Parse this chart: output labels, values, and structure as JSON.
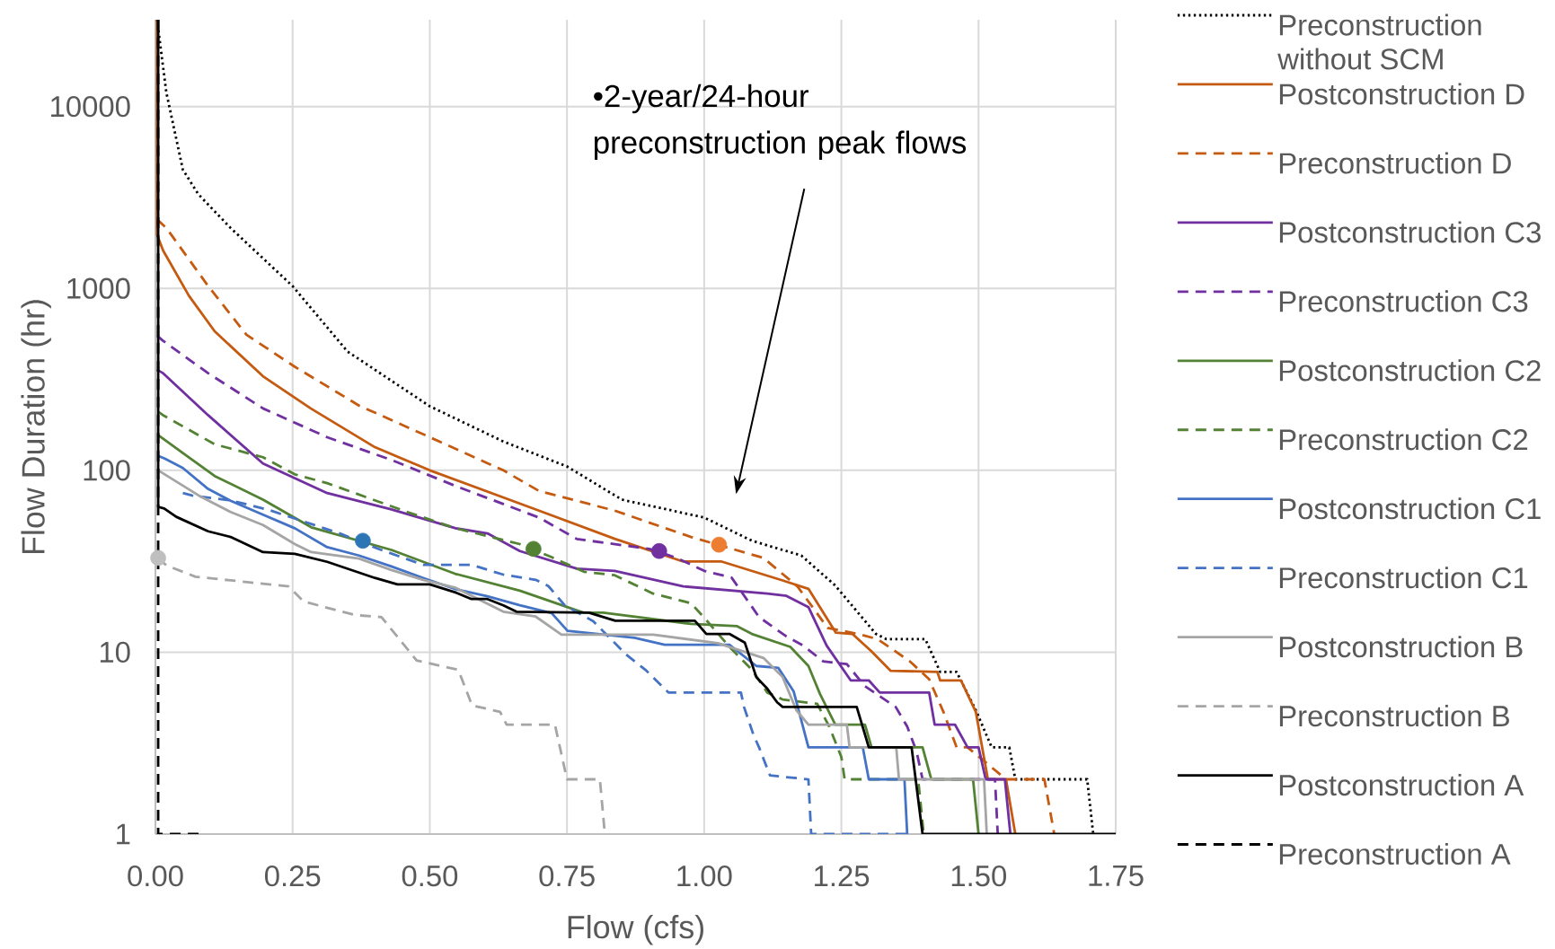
{
  "chart_data": {
    "type": "line",
    "xlabel": "Flow (cfs)",
    "ylabel": "Flow Duration (hr)",
    "xlim": [
      0,
      1.75
    ],
    "ylim": [
      1,
      30000
    ],
    "log": "y",
    "grid": true,
    "legend": "right",
    "xticks": [
      {
        "value": 0,
        "label": "0.00"
      },
      {
        "value": 0.25,
        "label": "0.25"
      },
      {
        "value": 0.5,
        "label": "0.50"
      },
      {
        "value": 0.75,
        "label": "0.75"
      },
      {
        "value": 1,
        "label": "1.00"
      },
      {
        "value": 1.25,
        "label": "1.25"
      },
      {
        "value": 1.5,
        "label": "1.50"
      },
      {
        "value": 1.75,
        "label": "1.75"
      }
    ],
    "yticks": [
      1,
      10,
      100,
      1000,
      10000
    ],
    "annotations": [
      "•2-year/24-hour preconstruction peak flows"
    ],
    "series": [
      {
        "name": "Preconstruction without SCM",
        "color": "#000000",
        "line_style": "dotted",
        "x": [
          0.003,
          0.02,
          0.05,
          0.078,
          0.137,
          0.25,
          0.35,
          0.5,
          0.634,
          0.75,
          0.85,
          1.0,
          1.087,
          1.177,
          1.238,
          1.313,
          1.332,
          1.403,
          1.43,
          1.46,
          1.495,
          1.524,
          1.556,
          1.567,
          1.698,
          1.709
        ],
        "values": [
          30000,
          11900,
          4500,
          3300,
          2150,
          1030,
          450,
          225,
          144,
          105,
          69,
          55,
          41,
          34,
          23.4,
          12.6,
          11.8,
          11.8,
          7.8,
          7.8,
          4.8,
          3,
          3,
          2,
          2,
          1
        ]
      },
      {
        "name": "Postconstruction D",
        "color": "#c55a11",
        "line_style": "solid",
        "x": [
          0.003,
          0.003,
          0.014,
          0.061,
          0.108,
          0.196,
          0.283,
          0.4,
          0.5,
          0.699,
          0.837,
          0.962,
          1.032,
          1.143,
          1.19,
          1.24,
          1.27,
          1.305,
          1.34,
          1.425,
          1.43,
          1.468,
          1.495,
          1.517,
          1.55,
          1.567
        ],
        "values": [
          30000,
          1970,
          1616,
          912,
          581,
          329,
          219,
          134,
          100,
          60,
          42,
          31.5,
          31.5,
          24.8,
          22.3,
          12.8,
          12.6,
          10.1,
          7.9,
          7.8,
          7.0,
          7.0,
          4.7,
          2,
          2,
          1
        ]
      },
      {
        "name": "Preconstruction D",
        "color": "#c55a11",
        "line_style": "dashed",
        "x": [
          0.003,
          0.02,
          0.096,
          0.166,
          0.254,
          0.371,
          0.5,
          0.634,
          0.699,
          0.837,
          0.976,
          1.108,
          1.17,
          1.225,
          1.28,
          1.316,
          1.375,
          1.41,
          1.436,
          1.46,
          1.48,
          1.55,
          1.62,
          1.638
        ],
        "values": [
          2400,
          2148,
          1032,
          556,
          371,
          227,
          152,
          100,
          77,
          60,
          43,
          33,
          23,
          13.6,
          12.6,
          11.8,
          8.9,
          7.1,
          4.7,
          3,
          3,
          2,
          2,
          1
        ]
      },
      {
        "name": "Postconstruction C3",
        "color": "#7030a0",
        "line_style": "solid",
        "x": [
          0.003,
          0.014,
          0.096,
          0.196,
          0.313,
          0.43,
          0.547,
          0.605,
          0.664,
          0.768,
          0.837,
          0.962,
          1.115,
          1.15,
          1.19,
          1.223,
          1.267,
          1.3,
          1.32,
          1.41,
          1.42,
          1.457,
          1.48,
          1.5,
          1.513,
          1.548,
          1.558
        ],
        "values": [
          357,
          342,
          201,
          109,
          75,
          61,
          48,
          45,
          36,
          28.8,
          28,
          23,
          21,
          20.4,
          17.7,
          10.9,
          7.0,
          7.0,
          6.0,
          6.0,
          4,
          4,
          3,
          3,
          2,
          2,
          1
        ]
      },
      {
        "name": "Preconstruction C3",
        "color": "#7030a0",
        "line_style": "dashed",
        "x": [
          0.003,
          0.014,
          0.096,
          0.196,
          0.313,
          0.43,
          0.547,
          0.699,
          0.768,
          0.9,
          0.95,
          1.0,
          1.05,
          1.1,
          1.15,
          1.18,
          1.217,
          1.26,
          1.293,
          1.349,
          1.37,
          1.387,
          1.398,
          1.53,
          1.535
        ],
        "values": [
          550,
          515,
          342,
          219,
          152,
          114,
          82,
          55,
          41.9,
          37,
          33,
          28,
          25.7,
          15.6,
          12.2,
          10.9,
          8.9,
          8.6,
          6.5,
          5,
          3.9,
          2.85,
          2,
          2,
          1
        ]
      },
      {
        "name": "Postconstruction C2",
        "color": "#548235",
        "line_style": "solid",
        "x": [
          0.005,
          0.108,
          0.196,
          0.284,
          0.43,
          0.488,
          0.546,
          0.664,
          0.78,
          0.816,
          0.976,
          1.06,
          1.087,
          1.157,
          1.19,
          1.211,
          1.239,
          1.293,
          1.305,
          1.398,
          1.414,
          1.49,
          1.5
        ],
        "values": [
          156,
          93,
          69,
          48.6,
          36.5,
          31.4,
          27,
          21.8,
          16.5,
          16.5,
          14.3,
          13.9,
          12.6,
          10.7,
          8.4,
          5.9,
          4,
          4,
          3,
          3,
          2,
          2,
          1
        ]
      },
      {
        "name": "Preconstruction C2",
        "color": "#548235",
        "line_style": "dashed",
        "x": [
          0.005,
          0.014,
          0.108,
          0.196,
          0.254,
          0.313,
          0.459,
          0.547,
          0.605,
          0.664,
          0.722,
          0.781,
          0.837,
          0.907,
          0.976,
          1.004,
          1.046,
          1.087,
          1.115,
          1.143,
          1.206,
          1.228,
          1.25,
          1.256,
          1.39,
          1.4
        ],
        "values": [
          210,
          201,
          139,
          118,
          95,
          85,
          59,
          48,
          43.5,
          39.3,
          33.3,
          27.7,
          26.5,
          21,
          18.6,
          15,
          10.7,
          8,
          6,
          5.5,
          5.2,
          3.9,
          2.65,
          2,
          2,
          1
        ]
      },
      {
        "name": "Postconstruction C1",
        "color": "#4472c4",
        "line_style": "solid",
        "x": [
          0.005,
          0.017,
          0.05,
          0.096,
          0.137,
          0.196,
          0.254,
          0.313,
          0.371,
          0.43,
          0.488,
          0.547,
          0.605,
          0.664,
          0.722,
          0.751,
          0.873,
          0.928,
          1.046,
          1.095,
          1.135,
          1.163,
          1.19,
          1.289,
          1.3,
          1.365,
          1.37
        ],
        "values": [
          120,
          116,
          103,
          79,
          68,
          57,
          48,
          37.8,
          34,
          29.6,
          25.6,
          22.2,
          20.3,
          18.1,
          16.4,
          13.1,
          12,
          11,
          11,
          8.4,
          8.2,
          6.1,
          3,
          3,
          2,
          2,
          1
        ]
      },
      {
        "name": "Preconstruction C1",
        "color": "#4472c4",
        "line_style": "dashed",
        "x": [
          0.05,
          0.067,
          0.137,
          0.207,
          0.289,
          0.336,
          0.406,
          0.488,
          0.576,
          0.634,
          0.693,
          0.716,
          0.746,
          0.798,
          0.858,
          0.893,
          0.935,
          1.067,
          1.073,
          1.09,
          1.1,
          1.12,
          1.19,
          1.195,
          1.38
        ],
        "values": [
          75,
          72.7,
          68.4,
          60.5,
          50.1,
          45,
          37,
          30.2,
          30.2,
          26.7,
          25,
          23.1,
          18.1,
          14.8,
          9.7,
          8,
          6,
          6,
          4.96,
          3.5,
          3,
          2.1,
          2,
          1,
          1
        ]
      },
      {
        "name": "Postconstruction B",
        "color": "#a5a5a5",
        "line_style": "solid",
        "x": [
          0.005,
          0.017,
          0.079,
          0.137,
          0.196,
          0.254,
          0.284,
          0.371,
          0.43,
          0.488,
          0.547,
          0.634,
          0.693,
          0.74,
          0.907,
          1.025,
          1.108,
          1.143,
          1.168,
          1.19,
          1.26,
          1.265,
          1.35,
          1.355,
          1.51,
          1.515
        ],
        "values": [
          100,
          95,
          72.7,
          59,
          50,
          39.3,
          35.5,
          32.7,
          28.3,
          25,
          22.6,
          16.7,
          15.7,
          12.5,
          12.5,
          11.2,
          9.3,
          7.3,
          4.8,
          4,
          4,
          3,
          3,
          2,
          2,
          1
        ]
      },
      {
        "name": "Preconstruction B",
        "color": "#a5a5a5",
        "line_style": "dashed",
        "x": [
          0.005,
          0.02,
          0.073,
          0.243,
          0.27,
          0.364,
          0.412,
          0.476,
          0.552,
          0.577,
          0.628,
          0.64,
          0.728,
          0.75,
          0.81,
          0.819
        ],
        "values": [
          33,
          30,
          26,
          23,
          19,
          16,
          15.6,
          9,
          8,
          5.1,
          4.7,
          4,
          4,
          2,
          2,
          1
        ]
      },
      {
        "name": "Postconstruction A",
        "color": "#000000",
        "line_style": "solid",
        "x": [
          0.005,
          0.005,
          0.016,
          0.038,
          0.096,
          0.137,
          0.196,
          0.254,
          0.313,
          0.4,
          0.441,
          0.5,
          0.547,
          0.576,
          0.605,
          0.634,
          0.658,
          0.79,
          0.838,
          0.983,
          1.004,
          1.046,
          1.074,
          1.095,
          1.115,
          1.133,
          1.143,
          1.278,
          1.3,
          1.378,
          1.398,
          1.75
        ],
        "values": [
          30000,
          63,
          61.7,
          55.5,
          46.2,
          43,
          35.5,
          34.7,
          31.4,
          25.6,
          23.6,
          23.6,
          21.3,
          19.6,
          19.6,
          18.1,
          16.7,
          16.5,
          14.9,
          14.9,
          12.6,
          12.6,
          11.3,
          7.3,
          6.3,
          5.3,
          5,
          5,
          3,
          3,
          1,
          1
        ]
      },
      {
        "name": "Preconstruction A",
        "color": "#000000",
        "line_style": "dashed",
        "x": [
          0.005,
          0.005,
          0.08
        ],
        "values": [
          30000,
          1,
          1
        ]
      },
      {
        "type": "scatter",
        "marker": "circle",
        "colors": [
          "#bfbfbf",
          "#2e75b6",
          "#548235",
          "#7030a0",
          "#ed7d31"
        ],
        "x": [
          0.005,
          0.378,
          0.689,
          0.918,
          1.027
        ],
        "values": [
          33,
          41,
          37,
          36,
          39
        ]
      }
    ]
  }
}
